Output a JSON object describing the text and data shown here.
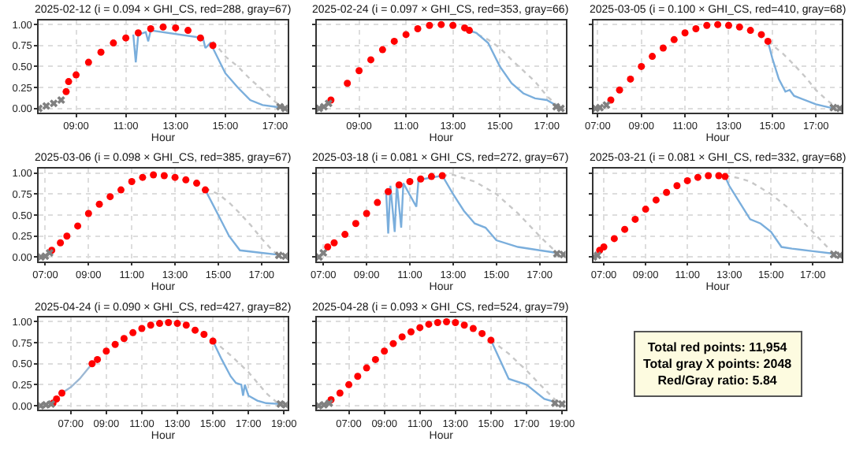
{
  "chart_data": [
    {
      "type": "line",
      "title": "2025-02-12 (i = 0.094 × GHI_CS, red=288, gray=67)",
      "xlabel": "Hour",
      "grid": true,
      "xlim": [
        7.5,
        17.5
      ],
      "xticks": [
        {
          "value": 9,
          "label": "09:00"
        },
        {
          "value": 11,
          "label": "11:00"
        },
        {
          "value": 13,
          "label": "13:00"
        },
        {
          "value": 15,
          "label": "15:00"
        },
        {
          "value": 17,
          "label": "17:00"
        }
      ],
      "ylim": [
        -0.05,
        1.05
      ],
      "yticks": [
        {
          "value": 0,
          "label": "0.00"
        },
        {
          "value": 0.25,
          "label": "0.25"
        },
        {
          "value": 0.5,
          "label": "0.50"
        },
        {
          "value": 0.75,
          "label": "0.75"
        },
        {
          "value": 1,
          "label": "1.00"
        }
      ],
      "series": [
        {
          "type": "line",
          "line_style": "dotted",
          "color": "#c8c8c8",
          "x": [
            14.5,
            15,
            15.5,
            16,
            16.5,
            17,
            17.3
          ],
          "values": [
            0.8,
            0.62,
            0.5,
            0.35,
            0.22,
            0.08,
            0.02
          ]
        },
        {
          "type": "line",
          "line_style": "solid",
          "color": "#7aaedc",
          "x": [
            11.3,
            11.4,
            11.5,
            11.8,
            11.9,
            12,
            14.1,
            14.2,
            14.4,
            14.5,
            15,
            15.5,
            16,
            16.5,
            17,
            17.3
          ],
          "values": [
            0.88,
            0.55,
            0.88,
            0.91,
            0.8,
            0.93,
            0.84,
            0.72,
            0.78,
            0.72,
            0.42,
            0.25,
            0.1,
            0.04,
            0.02,
            0.01
          ]
        },
        {
          "type": "scatter",
          "marker": "circle",
          "color": "#ff0000",
          "x": [
            8.6,
            8.7,
            9,
            9.5,
            10,
            10.5,
            11,
            11.5,
            12,
            12.5,
            13,
            13.5,
            14,
            14.5
          ],
          "values": [
            0.2,
            0.32,
            0.4,
            0.55,
            0.67,
            0.78,
            0.84,
            0.9,
            0.95,
            0.97,
            0.96,
            0.93,
            0.84,
            0.75
          ]
        },
        {
          "type": "scatter",
          "marker": "cross",
          "color": "#808080",
          "x": [
            7.5,
            7.8,
            8.1,
            8.4,
            17.2,
            17.4
          ],
          "values": [
            0,
            0.03,
            0.06,
            0.1,
            0.02,
            0
          ]
        }
      ]
    },
    {
      "type": "line",
      "title": "2025-02-24 (i = 0.097 × GHI_CS, red=353, gray=66)",
      "xlabel": "Hour",
      "grid": true,
      "xlim": [
        7.2,
        17.8
      ],
      "xticks": [
        {
          "value": 9,
          "label": "09:00"
        },
        {
          "value": 11,
          "label": "11:00"
        },
        {
          "value": 13,
          "label": "13:00"
        },
        {
          "value": 15,
          "label": "15:00"
        },
        {
          "value": 17,
          "label": "17:00"
        }
      ],
      "tick_labels": "x",
      "ylim": [
        -0.05,
        1.05
      ],
      "yticks": [
        0,
        0.25,
        0.5,
        0.75,
        1
      ],
      "series": [
        {
          "type": "line",
          "line_style": "dotted",
          "color": "#c8c8c8",
          "x": [
            13.7,
            14.5,
            15,
            15.5,
            16,
            16.5,
            17,
            17.5
          ],
          "values": [
            0.93,
            0.82,
            0.72,
            0.58,
            0.45,
            0.32,
            0.15,
            0.02
          ]
        },
        {
          "type": "line",
          "line_style": "solid",
          "color": "#7aaedc",
          "x": [
            13.7,
            14,
            14.5,
            15,
            15.5,
            16,
            16.5,
            17,
            17.5
          ],
          "values": [
            0.93,
            0.9,
            0.78,
            0.5,
            0.3,
            0.18,
            0.12,
            0.1,
            0.02
          ]
        },
        {
          "type": "scatter",
          "marker": "circle",
          "color": "#ff0000",
          "x": [
            7.8,
            8.5,
            9,
            9.5,
            10,
            10.5,
            11,
            11.5,
            12,
            12.5,
            13,
            13.5,
            13.7
          ],
          "values": [
            0.1,
            0.3,
            0.45,
            0.58,
            0.7,
            0.8,
            0.88,
            0.95,
            0.99,
            1.0,
            0.99,
            0.96,
            0.93
          ]
        },
        {
          "type": "scatter",
          "marker": "cross",
          "color": "#808080",
          "x": [
            7.3,
            7.5,
            7.7,
            17.4,
            17.6
          ],
          "values": [
            0,
            0.02,
            0.06,
            0.02,
            0
          ]
        }
      ]
    },
    {
      "type": "line",
      "title": "2025-03-05 (i = 0.100 × GHI_CS, red=410, gray=68)",
      "xlabel": "Hour",
      "grid": true,
      "xlim": [
        6.8,
        18.2
      ],
      "xticks": [
        {
          "value": 7,
          "label": "07:00"
        },
        {
          "value": 9,
          "label": "09:00"
        },
        {
          "value": 11,
          "label": "11:00"
        },
        {
          "value": 13,
          "label": "13:00"
        },
        {
          "value": 15,
          "label": "15:00"
        },
        {
          "value": 17,
          "label": "17:00"
        }
      ],
      "tick_labels": "x",
      "ylim": [
        -0.05,
        1.05
      ],
      "yticks": [
        0,
        0.25,
        0.5,
        0.75,
        1
      ],
      "series": [
        {
          "type": "line",
          "line_style": "dotted",
          "color": "#c8c8c8",
          "x": [
            14.8,
            15.5,
            16,
            16.5,
            17,
            17.5,
            18
          ],
          "values": [
            0.8,
            0.65,
            0.52,
            0.38,
            0.22,
            0.1,
            0
          ]
        },
        {
          "type": "line",
          "line_style": "solid",
          "color": "#7aaedc",
          "x": [
            14.8,
            15,
            15.3,
            15.6,
            15.8,
            16,
            17,
            17.8
          ],
          "values": [
            0.8,
            0.6,
            0.35,
            0.2,
            0.22,
            0.15,
            0.05,
            0
          ]
        },
        {
          "type": "scatter",
          "marker": "circle",
          "color": "#ff0000",
          "x": [
            7.6,
            8,
            8.5,
            9,
            9.5,
            10,
            10.5,
            11,
            11.5,
            12,
            12.5,
            13,
            13.5,
            14,
            14.5,
            14.8
          ],
          "values": [
            0.1,
            0.22,
            0.35,
            0.5,
            0.62,
            0.72,
            0.82,
            0.9,
            0.95,
            0.99,
            1.0,
            0.99,
            0.97,
            0.93,
            0.88,
            0.8
          ]
        },
        {
          "type": "scatter",
          "marker": "cross",
          "color": "#808080",
          "x": [
            6.9,
            7.1,
            7.4,
            17.8,
            18.1
          ],
          "values": [
            0,
            0.01,
            0.04,
            0.01,
            0
          ]
        }
      ]
    },
    {
      "type": "line",
      "title": "2025-03-06 (i = 0.098 × GHI_CS, red=385, gray=67)",
      "xlabel": "Hour",
      "grid": true,
      "xlim": [
        6.7,
        18.2
      ],
      "xticks": [
        {
          "value": 7,
          "label": "07:00"
        },
        {
          "value": 9,
          "label": "09:00"
        },
        {
          "value": 11,
          "label": "11:00"
        },
        {
          "value": 13,
          "label": "13:00"
        },
        {
          "value": 15,
          "label": "15:00"
        },
        {
          "value": 17,
          "label": "17:00"
        }
      ],
      "ylim": [
        -0.05,
        1.05
      ],
      "yticks": [
        {
          "value": 0,
          "label": "0.00"
        },
        {
          "value": 0.25,
          "label": "0.25"
        },
        {
          "value": 0.5,
          "label": "0.50"
        },
        {
          "value": 0.75,
          "label": "0.75"
        },
        {
          "value": 1,
          "label": "1.00"
        }
      ],
      "series": [
        {
          "type": "line",
          "line_style": "dotted",
          "color": "#c8c8c8",
          "x": [
            14.4,
            15,
            15.5,
            16,
            16.5,
            17,
            17.5,
            17.8
          ],
          "values": [
            0.82,
            0.75,
            0.65,
            0.52,
            0.38,
            0.22,
            0.08,
            0.02
          ]
        },
        {
          "type": "line",
          "line_style": "solid",
          "color": "#7aaedc",
          "x": [
            14.4,
            15,
            15.5,
            16,
            17,
            17.7
          ],
          "values": [
            0.8,
            0.5,
            0.25,
            0.08,
            0.05,
            0.03
          ]
        },
        {
          "type": "scatter",
          "marker": "circle",
          "color": "#ff0000",
          "x": [
            7.3,
            7.7,
            8,
            8.5,
            9,
            9.5,
            10,
            10.5,
            11,
            11.5,
            12,
            12.5,
            13,
            13.5,
            14,
            14.4
          ],
          "values": [
            0.08,
            0.17,
            0.25,
            0.37,
            0.52,
            0.63,
            0.72,
            0.8,
            0.9,
            0.95,
            0.98,
            0.97,
            0.95,
            0.92,
            0.88,
            0.8
          ]
        },
        {
          "type": "scatter",
          "marker": "cross",
          "color": "#808080",
          "x": [
            6.8,
            7.0,
            7.2,
            17.8,
            18.1
          ],
          "values": [
            0,
            0.01,
            0.05,
            0.02,
            0.01
          ]
        }
      ]
    },
    {
      "type": "line",
      "title": "2025-03-18 (i = 0.081 × GHI_CS, red=272, gray=67)",
      "xlabel": "Hour",
      "grid": true,
      "tick_labels": "x",
      "xlim": [
        6.7,
        18.2
      ],
      "xticks": [
        {
          "value": 7,
          "label": "07:00"
        },
        {
          "value": 9,
          "label": "09:00"
        },
        {
          "value": 11,
          "label": "11:00"
        },
        {
          "value": 13,
          "label": "13:00"
        },
        {
          "value": 15,
          "label": "15:00"
        },
        {
          "value": 17,
          "label": "17:00"
        }
      ],
      "ylim": [
        -0.05,
        1.05
      ],
      "yticks": [
        0,
        0.25,
        0.5,
        0.75,
        1
      ],
      "series": [
        {
          "type": "line",
          "line_style": "dotted",
          "color": "#c8c8c8",
          "x": [
            12.5,
            13,
            14,
            15,
            16,
            17,
            17.8
          ],
          "values": [
            0.97,
            0.98,
            0.9,
            0.75,
            0.52,
            0.25,
            0.05
          ]
        },
        {
          "type": "line",
          "line_style": "solid",
          "color": "#7aaedc",
          "x": [
            9.9,
            10,
            10.1,
            10.3,
            10.4,
            10.6,
            10.7,
            11.3,
            11.4,
            12.5,
            13,
            13.5,
            14,
            14.5,
            15,
            16,
            17,
            17.8
          ],
          "values": [
            0.8,
            0.28,
            0.85,
            0.3,
            0.87,
            0.35,
            0.88,
            0.6,
            0.92,
            0.97,
            0.75,
            0.55,
            0.4,
            0.35,
            0.2,
            0.12,
            0.08,
            0.05
          ]
        },
        {
          "type": "scatter",
          "marker": "circle",
          "color": "#ff0000",
          "x": [
            7.2,
            7.5,
            8,
            8.5,
            9,
            9.5,
            10,
            10.5,
            11,
            11.5,
            12,
            12.5
          ],
          "values": [
            0.12,
            0.17,
            0.27,
            0.4,
            0.52,
            0.65,
            0.78,
            0.86,
            0.9,
            0.93,
            0.96,
            0.97
          ]
        },
        {
          "type": "scatter",
          "marker": "cross",
          "color": "#808080",
          "x": [
            6.8,
            7.0,
            17.8,
            18.1
          ],
          "values": [
            0,
            0.05,
            0.04,
            0.03
          ]
        }
      ]
    },
    {
      "type": "line",
      "title": "2025-03-21 (i = 0.081 × GHI_CS, red=332, gray=68)",
      "xlabel": "Hour",
      "grid": true,
      "xlim": [
        6.5,
        18.4
      ],
      "xticks": [
        {
          "value": 7,
          "label": "07:00"
        },
        {
          "value": 9,
          "label": "09:00"
        },
        {
          "value": 11,
          "label": "11:00"
        },
        {
          "value": 13,
          "label": "13:00"
        },
        {
          "value": 15,
          "label": "15:00"
        },
        {
          "value": 17,
          "label": "17:00"
        }
      ],
      "tick_labels": "x",
      "ylim": [
        -0.05,
        1.05
      ],
      "yticks": [
        0,
        0.25,
        0.5,
        0.75,
        1
      ],
      "series": [
        {
          "type": "line",
          "line_style": "dotted",
          "color": "#c8c8c8",
          "x": [
            12.8,
            13.5,
            14,
            15,
            16,
            17,
            17.5,
            18
          ],
          "values": [
            0.97,
            0.94,
            0.9,
            0.75,
            0.55,
            0.3,
            0.17,
            0.04
          ]
        },
        {
          "type": "line",
          "line_style": "solid",
          "color": "#7aaedc",
          "x": [
            12.8,
            13,
            13.5,
            14,
            14.5,
            15,
            15.5,
            16,
            17,
            18
          ],
          "values": [
            0.96,
            0.85,
            0.65,
            0.45,
            0.4,
            0.3,
            0.12,
            0.1,
            0.07,
            0.04
          ]
        },
        {
          "type": "scatter",
          "marker": "circle",
          "color": "#ff0000",
          "x": [
            6.8,
            7,
            7.5,
            8,
            8.5,
            9,
            9.5,
            10,
            10.5,
            11,
            11.5,
            12,
            12.5,
            12.8
          ],
          "values": [
            0.08,
            0.12,
            0.22,
            0.33,
            0.45,
            0.57,
            0.68,
            0.77,
            0.85,
            0.91,
            0.95,
            0.97,
            0.97,
            0.96
          ]
        },
        {
          "type": "scatter",
          "marker": "cross",
          "color": "#808080",
          "x": [
            6.5,
            6.7,
            18,
            18.3
          ],
          "values": [
            0,
            0.02,
            0.03,
            0.02
          ]
        }
      ]
    },
    {
      "type": "line",
      "title": "2025-04-24 (i = 0.090 × GHI_CS, red=427, gray=82)",
      "xlabel": "Hour",
      "grid": true,
      "xlim": [
        5.2,
        19.2
      ],
      "xticks": [
        {
          "value": 7,
          "label": "07:00"
        },
        {
          "value": 9,
          "label": "09:00"
        },
        {
          "value": 11,
          "label": "11:00"
        },
        {
          "value": 13,
          "label": "13:00"
        },
        {
          "value": 15,
          "label": "15:00"
        },
        {
          "value": 17,
          "label": "17:00"
        },
        {
          "value": 19,
          "label": "19:00"
        }
      ],
      "ylim": [
        -0.05,
        1.05
      ],
      "yticks": [
        {
          "value": 0,
          "label": "0.00"
        },
        {
          "value": 0.25,
          "label": "0.25"
        },
        {
          "value": 0.5,
          "label": "0.50"
        },
        {
          "value": 0.75,
          "label": "0.75"
        },
        {
          "value": 1,
          "label": "1.00"
        }
      ],
      "series": [
        {
          "type": "line",
          "line_style": "dotted",
          "color": "#c8c8c8",
          "x": [
            15,
            16,
            17,
            18,
            18.7
          ],
          "values": [
            0.78,
            0.6,
            0.4,
            0.15,
            0.02
          ]
        },
        {
          "type": "line",
          "line_style": "solid",
          "color": "#9cb8d4",
          "x": [
            6.5,
            7,
            7.5,
            8.2
          ],
          "values": [
            0.15,
            0.22,
            0.32,
            0.5
          ]
        },
        {
          "type": "line",
          "line_style": "solid",
          "color": "#7aaedc",
          "x": [
            15,
            15.5,
            16,
            16.3,
            16.6,
            16.7,
            16.8,
            17,
            17.5,
            18,
            18.8
          ],
          "values": [
            0.77,
            0.55,
            0.35,
            0.27,
            0.25,
            0.12,
            0.25,
            0.12,
            0.06,
            0.03,
            0.02
          ]
        },
        {
          "type": "scatter",
          "marker": "circle",
          "color": "#ff0000",
          "x": [
            6,
            6.2,
            6.5,
            8.2,
            8.5,
            9,
            9.5,
            10,
            10.5,
            11,
            11.5,
            12,
            12.5,
            13,
            13.5,
            14,
            14.5,
            15
          ],
          "values": [
            0.03,
            0.08,
            0.15,
            0.5,
            0.55,
            0.65,
            0.73,
            0.8,
            0.87,
            0.92,
            0.96,
            0.98,
            0.99,
            0.98,
            0.96,
            0.9,
            0.85,
            0.77
          ]
        },
        {
          "type": "scatter",
          "marker": "cross",
          "color": "#808080",
          "x": [
            5.3,
            5.6,
            5.9,
            18.8,
            19.1
          ],
          "values": [
            0,
            0.01,
            0.02,
            0.02,
            0.01
          ]
        }
      ]
    },
    {
      "type": "line",
      "title": "2025-04-28 (i = 0.093 × GHI_CS, red=524, gray=79)",
      "xlabel": "Hour",
      "grid": true,
      "tick_labels": "x",
      "xlim": [
        5.2,
        19.2
      ],
      "xticks": [
        {
          "value": 7,
          "label": "07:00"
        },
        {
          "value": 9,
          "label": "09:00"
        },
        {
          "value": 11,
          "label": "11:00"
        },
        {
          "value": 13,
          "label": "13:00"
        },
        {
          "value": 15,
          "label": "15:00"
        },
        {
          "value": 17,
          "label": "17:00"
        },
        {
          "value": 19,
          "label": "19:00"
        }
      ],
      "ylim": [
        -0.05,
        1.05
      ],
      "yticks": [
        0,
        0.25,
        0.5,
        0.75,
        1
      ],
      "series": [
        {
          "type": "line",
          "line_style": "dotted",
          "color": "#c8c8c8",
          "x": [
            15,
            16,
            17,
            18,
            18.8
          ],
          "values": [
            0.78,
            0.62,
            0.42,
            0.2,
            0.03
          ]
        },
        {
          "type": "line",
          "line_style": "solid",
          "color": "#7aaedc",
          "x": [
            15,
            15.5,
            16,
            17,
            18,
            18.5
          ],
          "values": [
            0.78,
            0.55,
            0.32,
            0.25,
            0.08,
            0.05
          ]
        },
        {
          "type": "scatter",
          "marker": "circle",
          "color": "#ff0000",
          "x": [
            6,
            6.5,
            7,
            7.5,
            8,
            8.5,
            9,
            9.5,
            10,
            10.5,
            11,
            11.5,
            12,
            12.5,
            13,
            13.5,
            14,
            14.5,
            15
          ],
          "values": [
            0.07,
            0.15,
            0.25,
            0.35,
            0.45,
            0.55,
            0.65,
            0.74,
            0.82,
            0.88,
            0.93,
            0.97,
            0.99,
            1.0,
            0.99,
            0.96,
            0.92,
            0.86,
            0.78
          ]
        },
        {
          "type": "scatter",
          "marker": "cross",
          "color": "#808080",
          "x": [
            5.3,
            5.6,
            5.9,
            18.6,
            19.0
          ],
          "values": [
            0,
            0.01,
            0.03,
            0.03,
            0.02
          ]
        }
      ]
    },
    {
      "type": "other",
      "annotations": [
        "Total red points: 11,954",
        "Total gray X points: 2048",
        "Red/Gray ratio: 5.84"
      ]
    }
  ]
}
